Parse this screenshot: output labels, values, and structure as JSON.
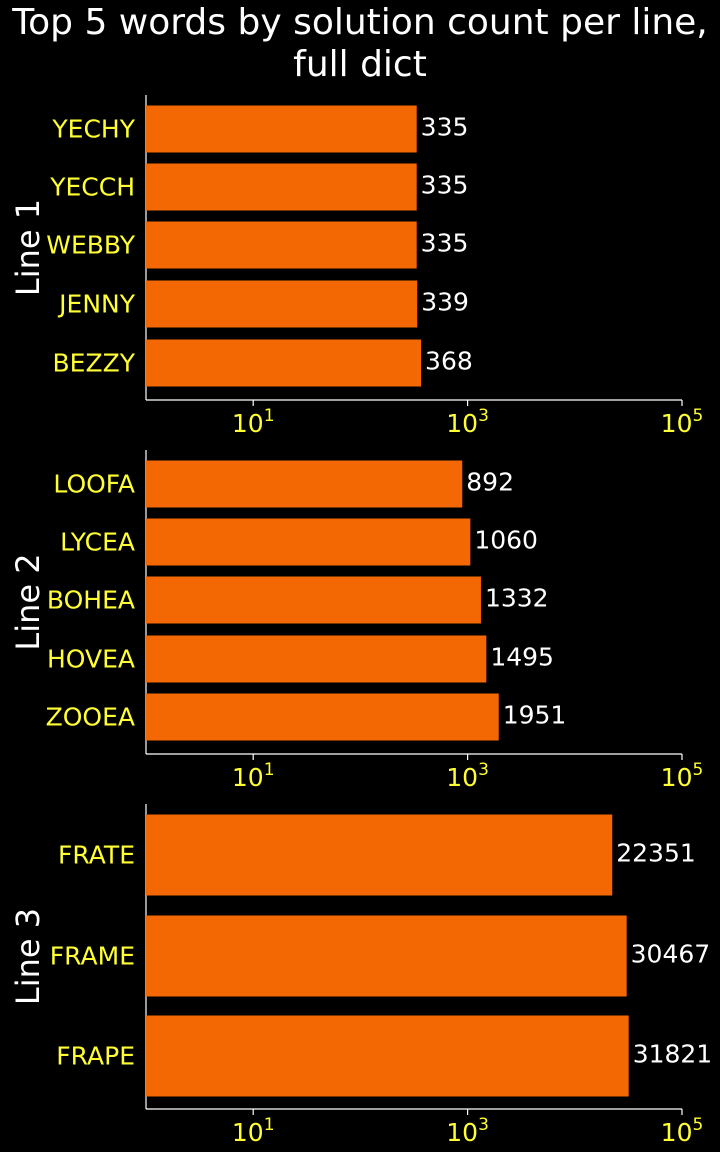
{
  "chart": {
    "title_line1": "Top 5 words by solution count per line,",
    "title_line2": "full dict"
  },
  "colors": {
    "background": "#000000",
    "bar": "#f46803",
    "category_label": "#ffff33",
    "tick_label": "#ffff33",
    "value_label": "#ffffff",
    "axis": "#ffffff",
    "title": "#ffffff"
  },
  "chart_data": [
    {
      "type": "bar",
      "orientation": "horizontal",
      "ylabel": "Line 1",
      "xscale": "log",
      "xlim": [
        1,
        100000
      ],
      "xticks": [
        {
          "base": "10",
          "exp": "1"
        },
        {
          "base": "10",
          "exp": "3"
        },
        {
          "base": "10",
          "exp": "5"
        }
      ],
      "categories": [
        "YECHY",
        "YECCH",
        "WEBBY",
        "JENNY",
        "BEZZY"
      ],
      "values": [
        335,
        335,
        335,
        339,
        368
      ],
      "value_labels": [
        "335",
        "335",
        "335",
        "339",
        "368"
      ],
      "grid": false
    },
    {
      "type": "bar",
      "orientation": "horizontal",
      "ylabel": "Line 2",
      "xscale": "log",
      "xlim": [
        1,
        100000
      ],
      "xticks": [
        {
          "base": "10",
          "exp": "1"
        },
        {
          "base": "10",
          "exp": "3"
        },
        {
          "base": "10",
          "exp": "5"
        }
      ],
      "categories": [
        "LOOFA",
        "LYCEA",
        "BOHEA",
        "HOVEA",
        "ZOOEA"
      ],
      "values": [
        892,
        1060,
        1332,
        1495,
        1951
      ],
      "value_labels": [
        "892",
        "1060",
        "1332",
        "1495",
        "1951"
      ],
      "grid": false
    },
    {
      "type": "bar",
      "orientation": "horizontal",
      "ylabel": "Line 3",
      "xscale": "log",
      "xlim": [
        1,
        100000
      ],
      "xticks": [
        {
          "base": "10",
          "exp": "1"
        },
        {
          "base": "10",
          "exp": "3"
        },
        {
          "base": "10",
          "exp": "5"
        }
      ],
      "categories": [
        "FRATE",
        "FRAME",
        "FRAPE"
      ],
      "values": [
        22351,
        30467,
        31821
      ],
      "value_labels": [
        "22351",
        "30467",
        "31821"
      ],
      "grid": false
    }
  ]
}
